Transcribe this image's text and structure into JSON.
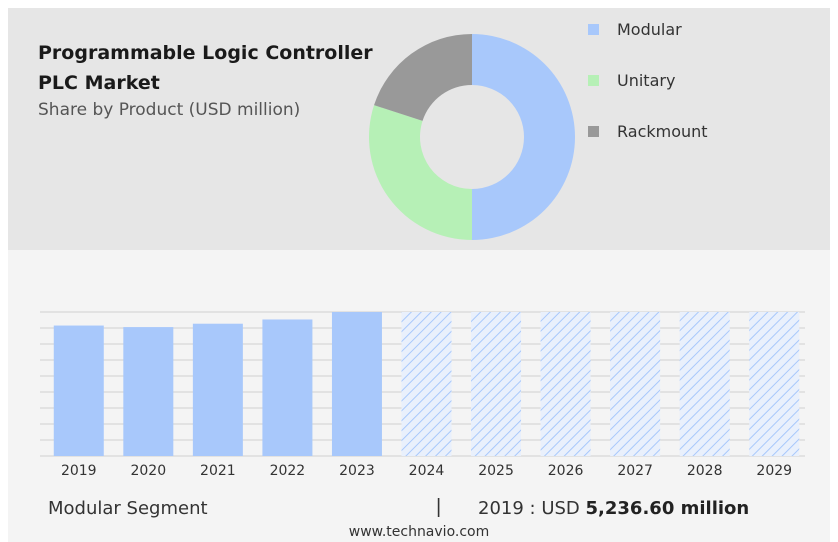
{
  "header": {
    "title_line1": "Programmable Logic Controller",
    "title_line2": "PLC Market",
    "subtitle": "Share by Product (USD million)"
  },
  "footer": {
    "segment_label": "Modular Segment",
    "separator": "|",
    "value_prefix": "2019 : USD",
    "value_bold": "5,236.60 million",
    "source": "www.technavio.com"
  },
  "chart_data": [
    {
      "type": "pie",
      "donut": true,
      "labels": [
        "Modular",
        "Unitary",
        "Rackmount"
      ],
      "values": [
        50,
        30,
        20
      ],
      "colors": [
        "#a8c8fb",
        "#b6f0b6",
        "#999999"
      ],
      "legend_position": "right"
    },
    {
      "type": "bar",
      "categories": [
        "2019",
        "2020",
        "2021",
        "2022",
        "2023",
        "2024",
        "2025",
        "2026",
        "2027",
        "2028",
        "2029"
      ],
      "values": [
        5236.6,
        5175,
        5310,
        5480,
        5780,
        null,
        null,
        null,
        null,
        null,
        null
      ],
      "forecast_from": "2024",
      "color": "#a8c8fb",
      "forecast_style": "hatched",
      "grid": true
    }
  ]
}
